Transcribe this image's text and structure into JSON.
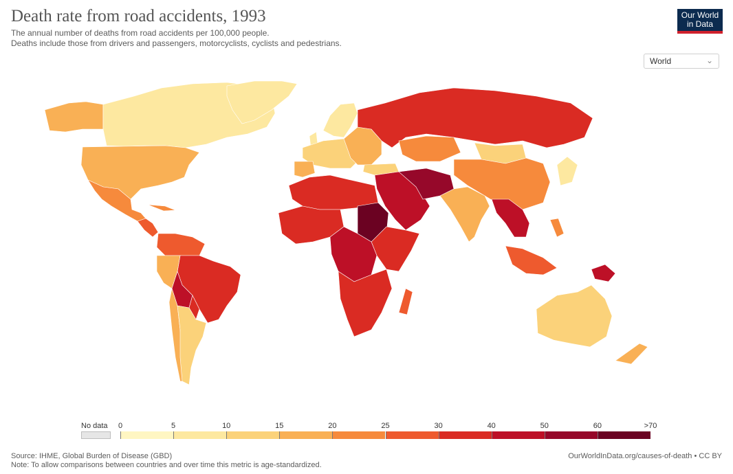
{
  "header": {
    "title": "Death rate from road accidents, 1993",
    "subtitle_line1": "The annual number of deaths from road accidents per 100,000 people.",
    "subtitle_line2": "Deaths include those from drivers and passengers, motorcyclists, cyclists and pedestrians.",
    "logo_line1": "Our World",
    "logo_line2": "in Data"
  },
  "controls": {
    "region_selected": "World"
  },
  "legend": {
    "no_data_label": "No data",
    "no_data_color": "#e6e6e6",
    "ticks": [
      "0",
      "5",
      "10",
      "15",
      "20",
      "25",
      "30",
      "40",
      "50",
      "60",
      ">70"
    ],
    "colors": [
      "#fff6c2",
      "#fde8a0",
      "#fbd27a",
      "#f9b055",
      "#f68a3c",
      "#ee5a2e",
      "#da2b23",
      "#bd1027",
      "#96082a",
      "#6b0222"
    ]
  },
  "footer": {
    "source": "Source: IHME, Global Burden of Disease (GBD)",
    "note": "Note: To allow comparisons between countries and over time this metric is age-standardized.",
    "url": "OurWorldInData.org/causes-of-death • CC BY"
  },
  "colors": {
    "logo_bg": "#0c2b4f",
    "logo_accent": "#d0212d"
  }
}
